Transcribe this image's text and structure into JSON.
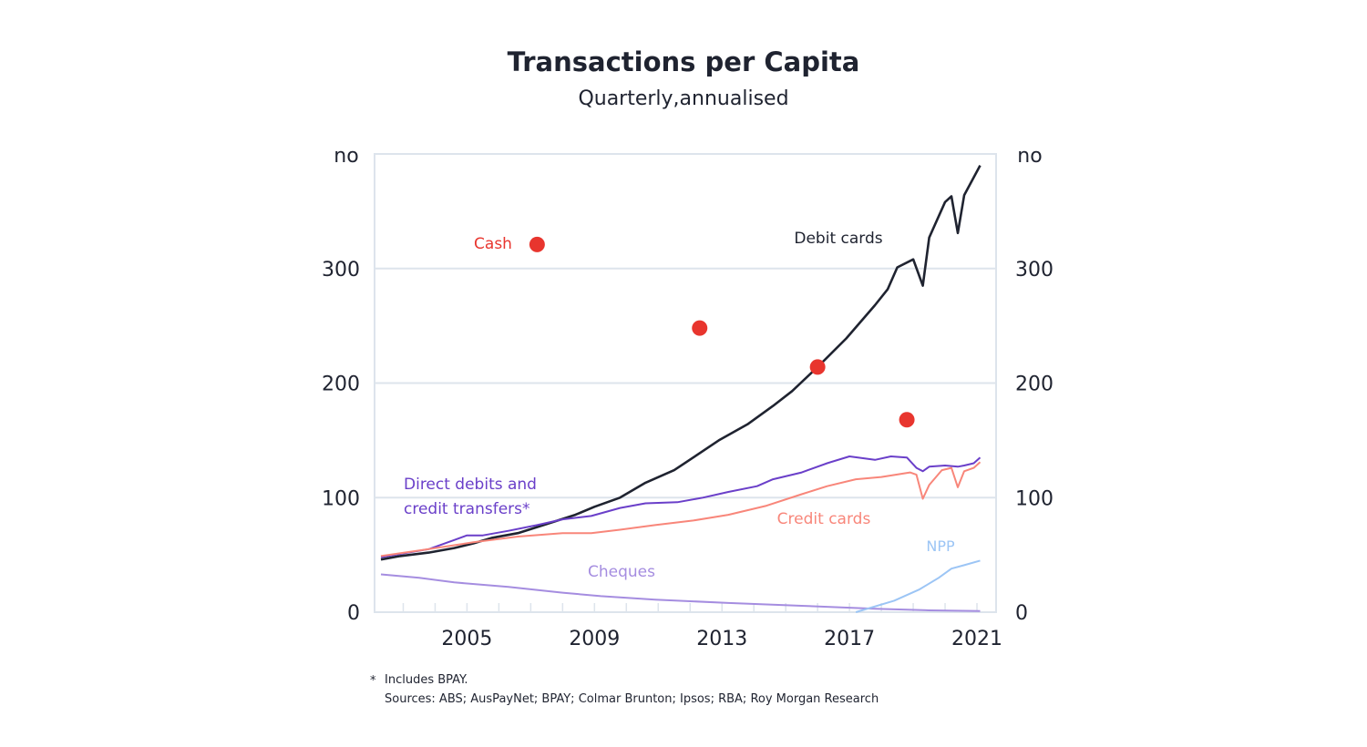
{
  "chart_data": {
    "type": "line",
    "title": "Transactions per Capita",
    "subtitle": "Quarterly,annualised",
    "ylabel_left": "no",
    "ylabel_right": "no",
    "ylim": [
      0,
      400
    ],
    "xlim": [
      2002.1,
      2021.6
    ],
    "yticks": [
      0,
      100,
      200,
      300
    ],
    "xticks": [
      2005,
      2009,
      2013,
      2017,
      2021
    ],
    "grid": true,
    "colors": {
      "debit": "#1f2330",
      "direct": "#6a3fc9",
      "credit": "#f8867a",
      "cheques": "#a58de0",
      "npp": "#9cc5f5",
      "cash": "#e8352e",
      "grid": "#dde4ec"
    },
    "series": [
      {
        "key": "debit",
        "name": "Debit cards",
        "x": [
          2002.3,
          2002.9,
          2003.8,
          2004.6,
          2005.2,
          2005.8,
          2006.6,
          2007.5,
          2008.4,
          2009.0,
          2009.8,
          2010.6,
          2011.5,
          2012.1,
          2012.9,
          2013.8,
          2014.6,
          2015.2,
          2016.0,
          2016.9,
          2017.8,
          2018.2,
          2018.5,
          2019.0,
          2019.3,
          2019.5,
          2020.0,
          2020.2,
          2020.4,
          2020.6,
          2021.1
        ],
        "y": [
          46,
          49,
          52,
          56,
          60,
          65,
          69,
          77,
          85,
          92,
          100,
          113,
          124,
          135,
          150,
          164,
          180,
          193,
          214,
          239,
          268,
          282,
          301,
          308,
          285,
          327,
          358,
          363,
          331,
          364,
          390
        ]
      },
      {
        "key": "direct",
        "name": "Direct debits and credit transfers*",
        "x": [
          2002.3,
          2003.8,
          2004.6,
          2005.0,
          2005.5,
          2006.3,
          2007.2,
          2008.0,
          2008.9,
          2009.8,
          2010.6,
          2011.6,
          2012.4,
          2013.2,
          2014.1,
          2014.6,
          2015.5,
          2016.3,
          2017.0,
          2017.8,
          2018.3,
          2018.8,
          2019.1,
          2019.3,
          2019.5,
          2020.0,
          2020.4,
          2020.6,
          2020.9,
          2021.1
        ],
        "y": [
          48,
          55,
          63,
          67,
          67,
          71,
          76,
          81,
          84,
          91,
          95,
          96,
          100,
          105,
          110,
          116,
          122,
          130,
          136,
          133,
          136,
          135,
          126,
          123,
          127,
          128,
          127,
          128,
          130,
          135
        ]
      },
      {
        "key": "credit",
        "name": "Credit cards",
        "x": [
          2002.3,
          2003.8,
          2005.2,
          2006.6,
          2008.0,
          2008.9,
          2009.8,
          2010.9,
          2012.1,
          2013.2,
          2014.4,
          2015.5,
          2016.3,
          2017.2,
          2018.0,
          2018.9,
          2019.1,
          2019.3,
          2019.5,
          2019.9,
          2020.2,
          2020.4,
          2020.6,
          2020.9,
          2021.1
        ],
        "y": [
          49,
          55,
          61,
          66,
          69,
          69,
          72,
          76,
          80,
          85,
          93,
          103,
          110,
          116,
          118,
          122,
          120,
          99,
          111,
          124,
          126,
          109,
          123,
          126,
          131
        ]
      },
      {
        "key": "cheques",
        "name": "Cheques",
        "x": [
          2002.3,
          2003.5,
          2004.6,
          2006.3,
          2008.0,
          2009.2,
          2010.9,
          2013.2,
          2015.5,
          2017.8,
          2019.5,
          2021.1
        ],
        "y": [
          33,
          30,
          26,
          22,
          17,
          14,
          11,
          8,
          5.6,
          3,
          1.6,
          1
        ]
      },
      {
        "key": "npp",
        "name": "NPP",
        "x": [
          2017.2,
          2018.4,
          2019.2,
          2019.8,
          2020.2,
          2020.6,
          2021.1
        ],
        "y": [
          0,
          10,
          20,
          30,
          38,
          41,
          45
        ]
      }
    ],
    "cash": {
      "name": "Cash",
      "x": [
        2007.2,
        2012.3,
        2016.0,
        2018.8
      ],
      "y": [
        321,
        248,
        214,
        168
      ]
    },
    "labels": {
      "debit": "Debit cards",
      "direct_1": "Direct debits and",
      "direct_2": "credit transfers*",
      "credit": "Credit cards",
      "cheques": "Cheques",
      "npp": "NPP",
      "cash": "Cash"
    }
  },
  "footnotes": {
    "note": "Includes BPAY.",
    "star": "*",
    "sources": "Sources: ABS; AusPayNet; BPAY; Colmar Brunton; Ipsos; RBA; Roy Morgan Research"
  }
}
